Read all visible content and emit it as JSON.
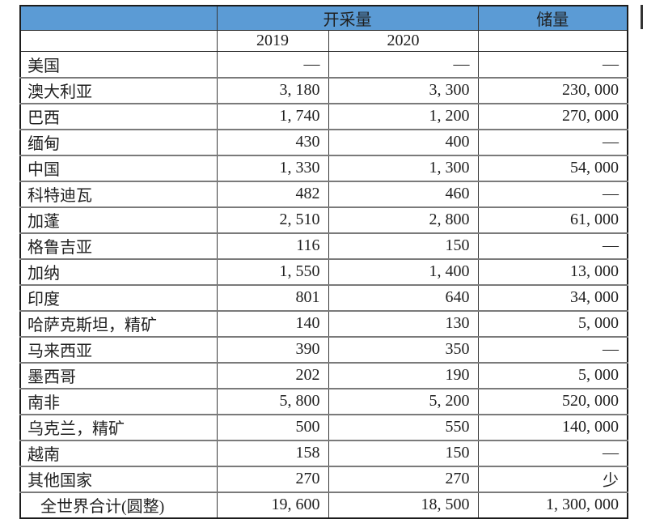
{
  "table": {
    "header": {
      "production_group": "开采量",
      "reserves": "储量",
      "year_2019": "2019",
      "year_2020": "2020"
    },
    "rows": [
      {
        "country": "美国",
        "y2019": "—",
        "y2020": "—",
        "reserves": "—"
      },
      {
        "country": "澳大利亚",
        "y2019": "3, 180",
        "y2020": "3, 300",
        "reserves": "230, 000"
      },
      {
        "country": "巴西",
        "y2019": "1, 740",
        "y2020": "1, 200",
        "reserves": "270, 000"
      },
      {
        "country": "缅甸",
        "y2019": "430",
        "y2020": "400",
        "reserves": "—"
      },
      {
        "country": "中国",
        "y2019": "1, 330",
        "y2020": "1, 300",
        "reserves": "54, 000"
      },
      {
        "country": "科特迪瓦",
        "y2019": "482",
        "y2020": "460",
        "reserves": "—"
      },
      {
        "country": "加蓬",
        "y2019": "2, 510",
        "y2020": "2, 800",
        "reserves": "61, 000"
      },
      {
        "country": "格鲁吉亚",
        "y2019": "116",
        "y2020": "150",
        "reserves": "—"
      },
      {
        "country": "加纳",
        "y2019": "1, 550",
        "y2020": "1, 400",
        "reserves": "13, 000"
      },
      {
        "country": "印度",
        "y2019": "801",
        "y2020": "640",
        "reserves": "34, 000"
      },
      {
        "country": "哈萨克斯坦，精矿",
        "y2019": "140",
        "y2020": "130",
        "reserves": "5, 000"
      },
      {
        "country": "马来西亚",
        "y2019": "390",
        "y2020": "350",
        "reserves": "—"
      },
      {
        "country": "墨西哥",
        "y2019": "202",
        "y2020": "190",
        "reserves": "5, 000"
      },
      {
        "country": "南非",
        "y2019": "5, 800",
        "y2020": "5, 200",
        "reserves": "520, 000"
      },
      {
        "country": "乌克兰，精矿",
        "y2019": "500",
        "y2020": "550",
        "reserves": "140, 000"
      },
      {
        "country": "越南",
        "y2019": "158",
        "y2020": "150",
        "reserves": "—"
      },
      {
        "country": "其他国家",
        "y2019": "270",
        "y2020": "270",
        "reserves": "少"
      },
      {
        "country": "全世界合计(圆整)",
        "y2019": "19, 600",
        "y2020": "18, 500",
        "reserves": "1, 300, 000",
        "is_total": true
      }
    ],
    "colors": {
      "header_bg": "#5b9bd5",
      "grid_horizontal": "#7a7a7a",
      "grid_vertical": "#383838",
      "outer_border": "#1c1c1c",
      "text": "#1f1f1f"
    },
    "missing_value_symbol": "—"
  },
  "cursor_bar": {
    "color": "#333333"
  }
}
